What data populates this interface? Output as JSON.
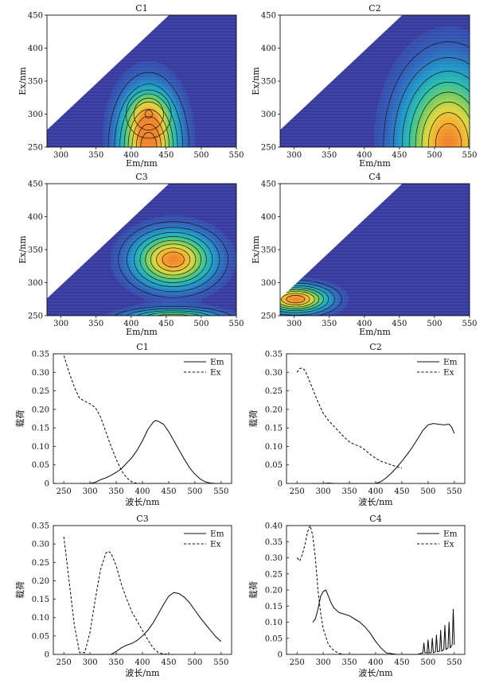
{
  "chart_data": [
    {
      "panel": "C1",
      "type": "heatmap",
      "title": "C1",
      "xlabel": "Em/nm",
      "ylabel": "Ex/nm",
      "xlim": [
        280,
        550
      ],
      "ylim": [
        250,
        450
      ],
      "xticks": [
        300,
        350,
        400,
        450,
        500,
        550
      ],
      "yticks": [
        250,
        300,
        350,
        400,
        450
      ],
      "peaks": [
        {
          "em": 425,
          "ex": 250,
          "sigma_em": 28,
          "sigma_ex": 55,
          "amp": 1.0
        },
        {
          "em": 425,
          "ex": 300,
          "sigma_em": 22,
          "sigma_ex": 25,
          "amp": 0.35
        }
      ]
    },
    {
      "panel": "C2",
      "type": "heatmap",
      "title": "C2",
      "xlabel": "Em/nm",
      "ylabel": "Ex/nm",
      "xlim": [
        280,
        550
      ],
      "ylim": [
        250,
        450
      ],
      "xticks": [
        300,
        350,
        400,
        450,
        500,
        550
      ],
      "yticks": [
        250,
        300,
        350,
        400,
        450
      ],
      "peaks": [
        {
          "em": 520,
          "ex": 255,
          "sigma_em": 45,
          "sigma_ex": 75,
          "amp": 1.0
        }
      ]
    },
    {
      "panel": "C3",
      "type": "heatmap",
      "title": "C3",
      "xlabel": "Em/nm",
      "ylabel": "Ex/nm",
      "xlim": [
        280,
        550
      ],
      "ylim": [
        250,
        450
      ],
      "xticks": [
        300,
        350,
        400,
        450,
        500,
        550
      ],
      "yticks": [
        250,
        300,
        350,
        400,
        450
      ],
      "peaks": [
        {
          "em": 460,
          "ex": 335,
          "sigma_em": 38,
          "sigma_ex": 28,
          "amp": 1.0
        },
        {
          "em": 460,
          "ex": 245,
          "sigma_em": 45,
          "sigma_ex": 10,
          "amp": 0.75
        }
      ]
    },
    {
      "panel": "C4",
      "type": "heatmap",
      "title": "C4",
      "xlabel": "Em/nm",
      "ylabel": "Ex/nm",
      "xlim": [
        280,
        550
      ],
      "ylim": [
        250,
        450
      ],
      "xticks": [
        300,
        350,
        400,
        450,
        500,
        550
      ],
      "yticks": [
        250,
        300,
        350,
        400,
        450
      ],
      "peaks": [
        {
          "em": 302,
          "ex": 275,
          "sigma_em": 32,
          "sigma_ex": 14,
          "amp": 1.0
        }
      ]
    },
    {
      "panel": "C1",
      "type": "line",
      "title": "C1",
      "xlabel": "波长/nm",
      "ylabel": "载荷",
      "xlim": [
        230,
        570
      ],
      "ylim": [
        0,
        0.35
      ],
      "xticks": [
        250,
        300,
        350,
        400,
        450,
        500,
        550
      ],
      "yticks": [
        0,
        0.05,
        0.1,
        0.15,
        0.2,
        0.25,
        0.3,
        0.35
      ],
      "legend": "top-right",
      "series": [
        {
          "name": "Em",
          "dash": false,
          "x": [
            280,
            300,
            310,
            320,
            330,
            340,
            350,
            360,
            370,
            380,
            390,
            400,
            410,
            420,
            425,
            430,
            440,
            450,
            460,
            470,
            480,
            490,
            500,
            510,
            520,
            530,
            540,
            550
          ],
          "y": [
            0,
            0,
            0.003,
            0.01,
            0.015,
            0.022,
            0.03,
            0.04,
            0.055,
            0.07,
            0.09,
            0.115,
            0.145,
            0.165,
            0.17,
            0.168,
            0.16,
            0.14,
            0.115,
            0.09,
            0.065,
            0.042,
            0.025,
            0.012,
            0.004,
            0.001,
            0,
            0
          ]
        },
        {
          "name": "Ex",
          "dash": true,
          "x": [
            250,
            260,
            270,
            280,
            290,
            300,
            310,
            320,
            330,
            340,
            350,
            360,
            370,
            380,
            390,
            400,
            410,
            420,
            430,
            440,
            450
          ],
          "y": [
            0.345,
            0.3,
            0.26,
            0.23,
            0.222,
            0.215,
            0.205,
            0.18,
            0.14,
            0.1,
            0.065,
            0.035,
            0.015,
            0.004,
            0,
            0,
            0,
            0,
            0,
            0,
            0
          ]
        }
      ]
    },
    {
      "panel": "C2",
      "type": "line",
      "title": "C2",
      "xlabel": "波长/nm",
      "ylabel": "载荷",
      "xlim": [
        230,
        570
      ],
      "ylim": [
        0,
        0.35
      ],
      "xticks": [
        250,
        300,
        350,
        400,
        450,
        500,
        550
      ],
      "yticks": [
        0,
        0.05,
        0.1,
        0.15,
        0.2,
        0.25,
        0.3,
        0.35
      ],
      "legend": "top-right",
      "series": [
        {
          "name": "Em",
          "dash": false,
          "x": [
            280,
            300,
            310,
            320,
            340,
            360,
            380,
            400,
            410,
            420,
            430,
            440,
            450,
            460,
            470,
            480,
            490,
            500,
            510,
            520,
            530,
            540,
            545,
            550
          ],
          "y": [
            0,
            0,
            0.001,
            0,
            0,
            0,
            0,
            0,
            0.005,
            0.015,
            0.028,
            0.043,
            0.06,
            0.078,
            0.098,
            0.12,
            0.143,
            0.158,
            0.162,
            0.16,
            0.158,
            0.16,
            0.152,
            0.135
          ]
        },
        {
          "name": "Ex",
          "dash": true,
          "x": [
            250,
            255,
            260,
            265,
            270,
            280,
            290,
            300,
            310,
            320,
            330,
            340,
            350,
            360,
            370,
            380,
            390,
            400,
            410,
            420,
            430,
            440,
            450
          ],
          "y": [
            0.3,
            0.31,
            0.312,
            0.305,
            0.29,
            0.255,
            0.22,
            0.19,
            0.17,
            0.155,
            0.14,
            0.125,
            0.112,
            0.105,
            0.1,
            0.09,
            0.078,
            0.068,
            0.06,
            0.055,
            0.05,
            0.045,
            0.042
          ]
        }
      ]
    },
    {
      "panel": "C3",
      "type": "line",
      "title": "C3",
      "xlabel": "波长/nm",
      "ylabel": "载荷",
      "xlim": [
        230,
        570
      ],
      "ylim": [
        0,
        0.35
      ],
      "xticks": [
        250,
        300,
        350,
        400,
        450,
        500,
        550
      ],
      "yticks": [
        0,
        0.05,
        0.1,
        0.15,
        0.2,
        0.25,
        0.3,
        0.35
      ],
      "legend": "top-right",
      "series": [
        {
          "name": "Em",
          "dash": false,
          "x": [
            280,
            300,
            320,
            340,
            350,
            360,
            370,
            380,
            390,
            400,
            410,
            420,
            430,
            440,
            450,
            460,
            470,
            480,
            490,
            500,
            510,
            520,
            530,
            540,
            550
          ],
          "y": [
            0,
            0,
            0,
            0,
            0.008,
            0.018,
            0.025,
            0.03,
            0.038,
            0.05,
            0.065,
            0.085,
            0.11,
            0.135,
            0.158,
            0.168,
            0.165,
            0.155,
            0.14,
            0.12,
            0.1,
            0.082,
            0.065,
            0.048,
            0.035
          ]
        },
        {
          "name": "Ex",
          "dash": true,
          "x": [
            250,
            260,
            270,
            280,
            290,
            300,
            310,
            320,
            330,
            335,
            340,
            350,
            360,
            370,
            380,
            390,
            400,
            410,
            420,
            430,
            440,
            450,
            460
          ],
          "y": [
            0.32,
            0.2,
            0.08,
            0.005,
            0.005,
            0.06,
            0.15,
            0.23,
            0.275,
            0.28,
            0.275,
            0.24,
            0.19,
            0.15,
            0.115,
            0.09,
            0.065,
            0.04,
            0.018,
            0.005,
            0.001,
            0,
            0
          ]
        }
      ]
    },
    {
      "panel": "C4",
      "type": "line",
      "title": "C4",
      "xlabel": "波长/nm",
      "ylabel": "载荷",
      "xlim": [
        230,
        570
      ],
      "ylim": [
        0,
        0.4
      ],
      "xticks": [
        250,
        300,
        350,
        400,
        450,
        500,
        550
      ],
      "yticks": [
        0,
        0.05,
        0.1,
        0.15,
        0.2,
        0.25,
        0.3,
        0.35,
        0.4
      ],
      "legend": "top-right",
      "series": [
        {
          "name": "Em",
          "dash": false,
          "x": [
            280,
            285,
            290,
            295,
            300,
            305,
            310,
            315,
            320,
            330,
            340,
            350,
            360,
            370,
            380,
            390,
            400,
            410,
            420,
            440,
            460,
            480,
            490,
            492,
            494,
            498,
            500,
            502,
            506,
            508,
            510,
            514,
            516,
            518,
            522,
            524,
            526,
            530,
            532,
            534,
            538,
            540,
            542,
            546,
            548,
            550
          ],
          "y": [
            0.1,
            0.11,
            0.14,
            0.18,
            0.195,
            0.2,
            0.18,
            0.16,
            0.145,
            0.13,
            0.125,
            0.12,
            0.11,
            0.1,
            0.085,
            0.065,
            0.04,
            0.02,
            0.005,
            0,
            0,
            0,
            0.005,
            0.035,
            0.005,
            0.005,
            0.045,
            0.005,
            0.005,
            0.05,
            0.005,
            0.008,
            0.06,
            0.008,
            0.01,
            0.075,
            0.01,
            0.015,
            0.09,
            0.015,
            0.02,
            0.1,
            0.02,
            0.03,
            0.14,
            0.03
          ]
        },
        {
          "name": "Ex",
          "dash": true,
          "x": [
            250,
            255,
            260,
            265,
            270,
            275,
            280,
            285,
            290,
            295,
            300,
            310,
            320,
            330,
            340,
            350,
            360,
            380,
            400,
            420,
            440,
            460
          ],
          "y": [
            0.3,
            0.29,
            0.31,
            0.34,
            0.38,
            0.4,
            0.37,
            0.3,
            0.2,
            0.13,
            0.08,
            0.03,
            0.012,
            0.003,
            0,
            0,
            0,
            0,
            0,
            0,
            0,
            0
          ]
        }
      ]
    }
  ]
}
